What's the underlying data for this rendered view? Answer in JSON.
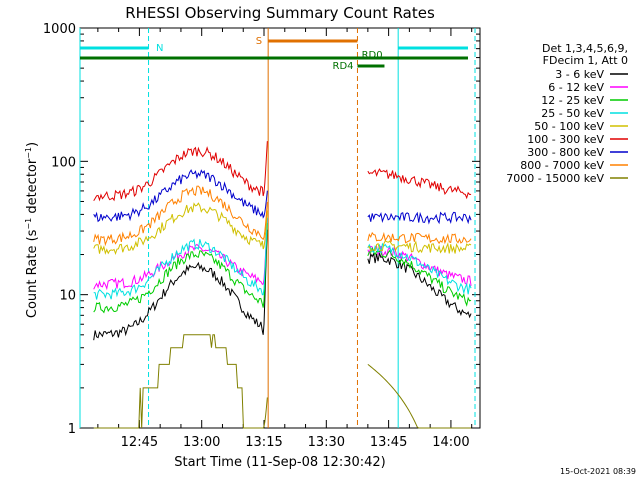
{
  "chart_data": {
    "type": "line",
    "title": "RHESSI Observing Summary Count Rates",
    "xlabel": "Start Time (11-Sep-08 12:30:42)",
    "ylabel": "Count Rate (s⁻¹ detector⁻¹)",
    "ylabel_parts": {
      "main": "Count Rate (s",
      "exp1": "−1",
      "mid": " detector",
      "exp2": "−1",
      "end": ")"
    },
    "yscale": "log",
    "ylim": [
      1,
      1000
    ],
    "xlim": [
      "12:30:42",
      "14:07:00"
    ],
    "x_ticks": [
      "12:45",
      "13:00",
      "13:15",
      "13:30",
      "13:45",
      "14:00"
    ],
    "y_ticks": [
      "1",
      "10",
      "100",
      "1000"
    ],
    "timestamp": "15-Oct-2021 08:39",
    "legend": {
      "placement": "right",
      "header": [
        "Det 1,3,4,5,6,9,",
        "FDecim 1, Att 0"
      ]
    },
    "flags": [
      {
        "label": "N",
        "color": "#00e0e0"
      },
      {
        "label": "S",
        "color": "#e07000"
      },
      {
        "label": "RD0",
        "color": "#007000"
      },
      {
        "label": "RD4",
        "color": "#007000"
      }
    ],
    "series": [
      {
        "name": "3 - 6 keV",
        "color": "#000000",
        "peak": 16,
        "base": 5,
        "after": 6,
        "spike": 42
      },
      {
        "name": "6 - 12 keV",
        "color": "#ff00ff",
        "peak": 22,
        "base": 12,
        "after": 12,
        "spike": 48
      },
      {
        "name": "12 - 25 keV",
        "color": "#00cc00",
        "peak": 20,
        "base": 8,
        "after": 8,
        "spike": 46
      },
      {
        "name": "25 - 50 keV",
        "color": "#00e0e0",
        "peak": 24,
        "base": 10,
        "after": 10,
        "spike": 50
      },
      {
        "name": "50 - 100 keV",
        "color": "#d0c000",
        "peak": 45,
        "base": 22,
        "after": 22,
        "spike": 52
      },
      {
        "name": "100 - 300 keV",
        "color": "#e00000",
        "peak": 120,
        "base": 55,
        "after": 56,
        "spike": 180
      },
      {
        "name": "300 - 800 keV",
        "color": "#0000cc",
        "peak": 80,
        "base": 38,
        "after": 38,
        "spike": 70
      },
      {
        "name": "800 - 7000 keV",
        "color": "#ff8000",
        "peak": 60,
        "base": 26,
        "after": 26,
        "spike": 60
      },
      {
        "name": "7000 - 15000 keV",
        "color": "#808000",
        "peak": 5,
        "base": 1,
        "after": 1,
        "spike": 2
      }
    ]
  }
}
